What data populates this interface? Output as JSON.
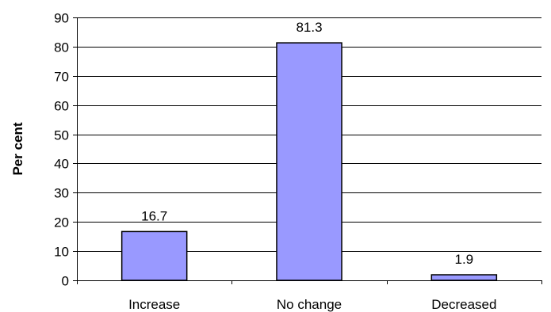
{
  "chart_data": {
    "type": "bar",
    "categories": [
      "Increase",
      "No change",
      "Decreased"
    ],
    "values": [
      16.7,
      81.3,
      1.9
    ],
    "data_labels": [
      "16.7",
      "81.3",
      "1.9"
    ],
    "title": "",
    "xlabel": "",
    "ylabel": "Per cent",
    "ylim": [
      0,
      90
    ],
    "yticks": [
      0,
      10,
      20,
      30,
      40,
      50,
      60,
      70,
      80,
      90
    ],
    "grid": true,
    "legend": "none",
    "colors": {
      "bar_fill": "#9999ff",
      "bar_stroke": "#000000",
      "grid": "#000000",
      "axis": "#000000",
      "text": "#000000"
    }
  }
}
